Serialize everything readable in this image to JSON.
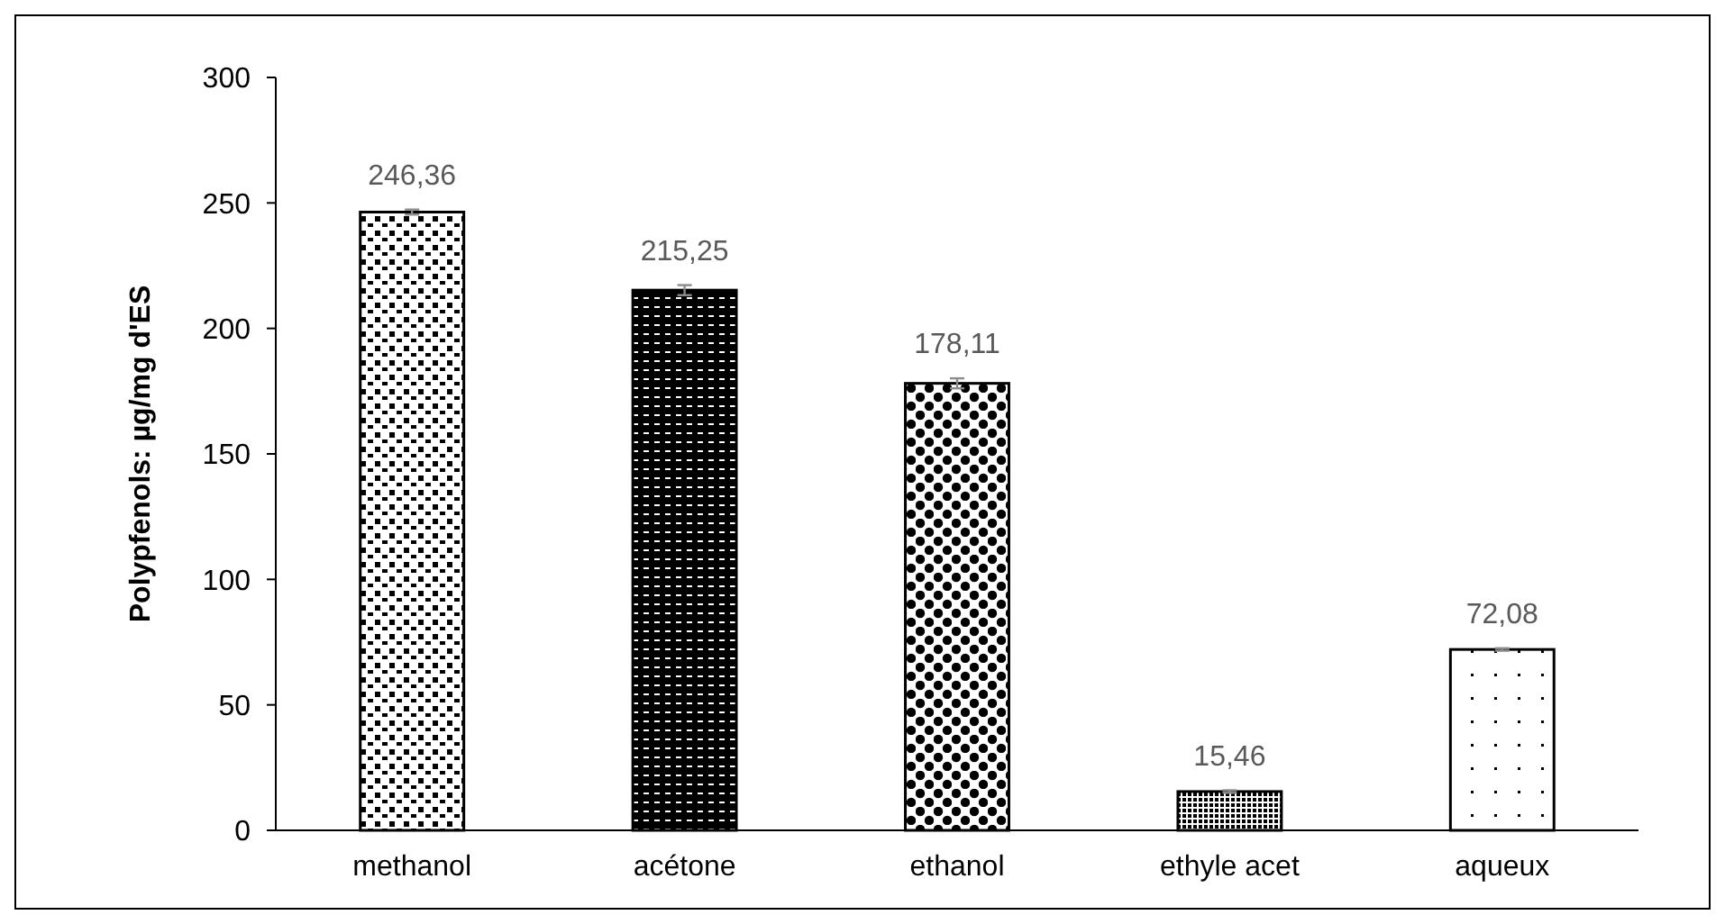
{
  "chart_data": {
    "type": "bar",
    "ylabel": "Polypfenols: µg/mg d'ES",
    "categories": [
      "methanol",
      "acétone",
      "ethanol",
      "ethyle acet",
      "aqueux"
    ],
    "values": [
      246.36,
      215.25,
      178.11,
      15.46,
      72.08
    ],
    "value_labels": [
      "246,36",
      "215,25",
      "178,11",
      "15,46",
      "72,08"
    ],
    "errors": [
      1,
      2,
      2,
      0.5,
      0.5
    ],
    "colors": [
      "#000000",
      "#000000",
      "#000000",
      "#000000",
      "#000000"
    ],
    "ylim": [
      0,
      300
    ],
    "yticks": [
      0,
      50,
      100,
      150,
      200,
      250,
      300
    ],
    "grid": false
  }
}
